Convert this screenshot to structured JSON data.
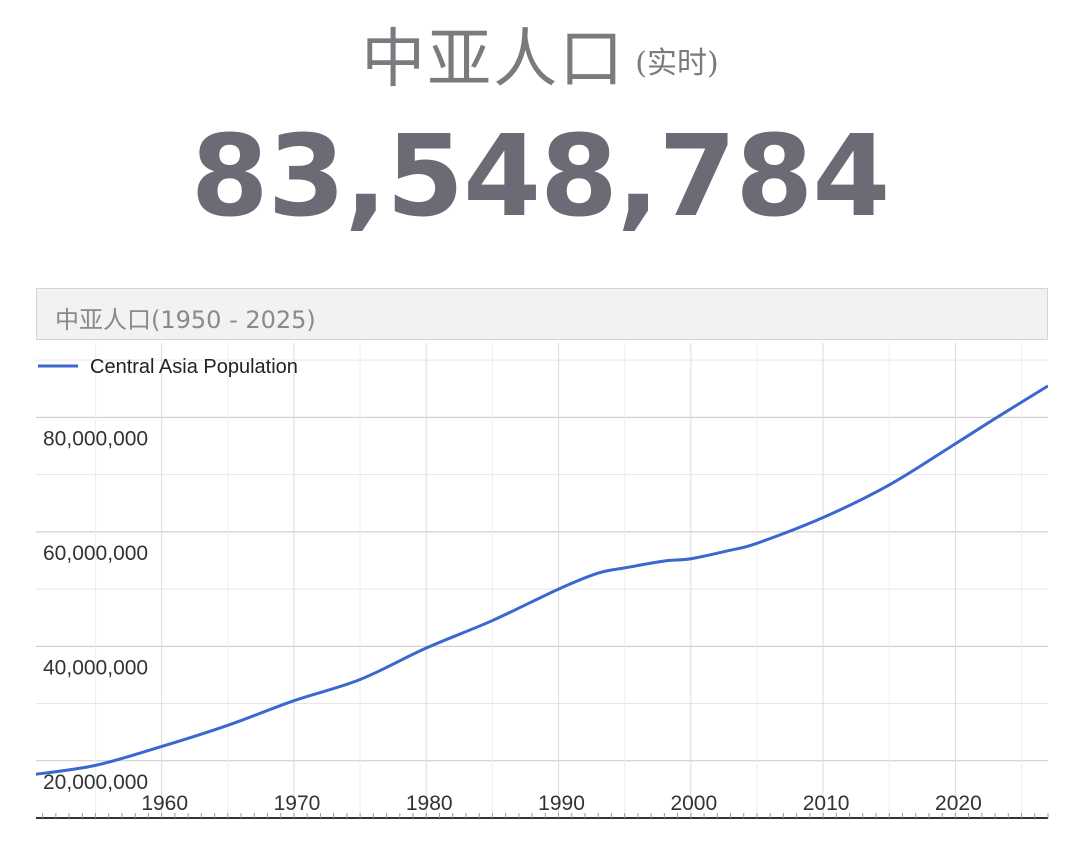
{
  "header": {
    "title": "中亚人口",
    "subtitle": "(实时)"
  },
  "counter": {
    "value": "83,548,784"
  },
  "chart_data": {
    "type": "line",
    "title": "中亚人口(1950 - 2025)",
    "xlabel": "",
    "ylabel": "",
    "legend": {
      "position": "top-left",
      "entries": [
        "Central Asia Population"
      ]
    },
    "grid": true,
    "xlim": [
      1950.5,
      2027
    ],
    "ylim": [
      10000000,
      93000000
    ],
    "x_ticks": [
      1960,
      1970,
      1980,
      1990,
      2000,
      2010,
      2020
    ],
    "x_tick_labels": [
      "1960",
      "1970",
      "1980",
      "1990",
      "2000",
      "2010",
      "2020"
    ],
    "y_ticks": [
      20000000,
      40000000,
      60000000,
      80000000
    ],
    "y_tick_labels": [
      "20,000,000",
      "40,000,000",
      "60,000,000",
      "80,000,000"
    ],
    "colors": {
      "line": "#3b67d0",
      "grid": "#e6e6e6",
      "grid_major": "#c8c8c8",
      "axis": "#333333",
      "tick_text": "#333333"
    },
    "series": [
      {
        "name": "Central Asia Population",
        "x": [
          1950,
          1955,
          1960,
          1965,
          1970,
          1975,
          1980,
          1985,
          1990,
          1993,
          1995,
          1998,
          2000,
          2003,
          2005,
          2010,
          2015,
          2020,
          2023,
          2027
        ],
        "values": [
          17500000,
          19200000,
          22500000,
          26200000,
          30500000,
          34200000,
          39700000,
          44500000,
          50000000,
          52800000,
          53700000,
          54900000,
          55300000,
          56800000,
          58000000,
          62500000,
          68200000,
          75400000,
          79800000,
          85500000
        ]
      }
    ]
  }
}
